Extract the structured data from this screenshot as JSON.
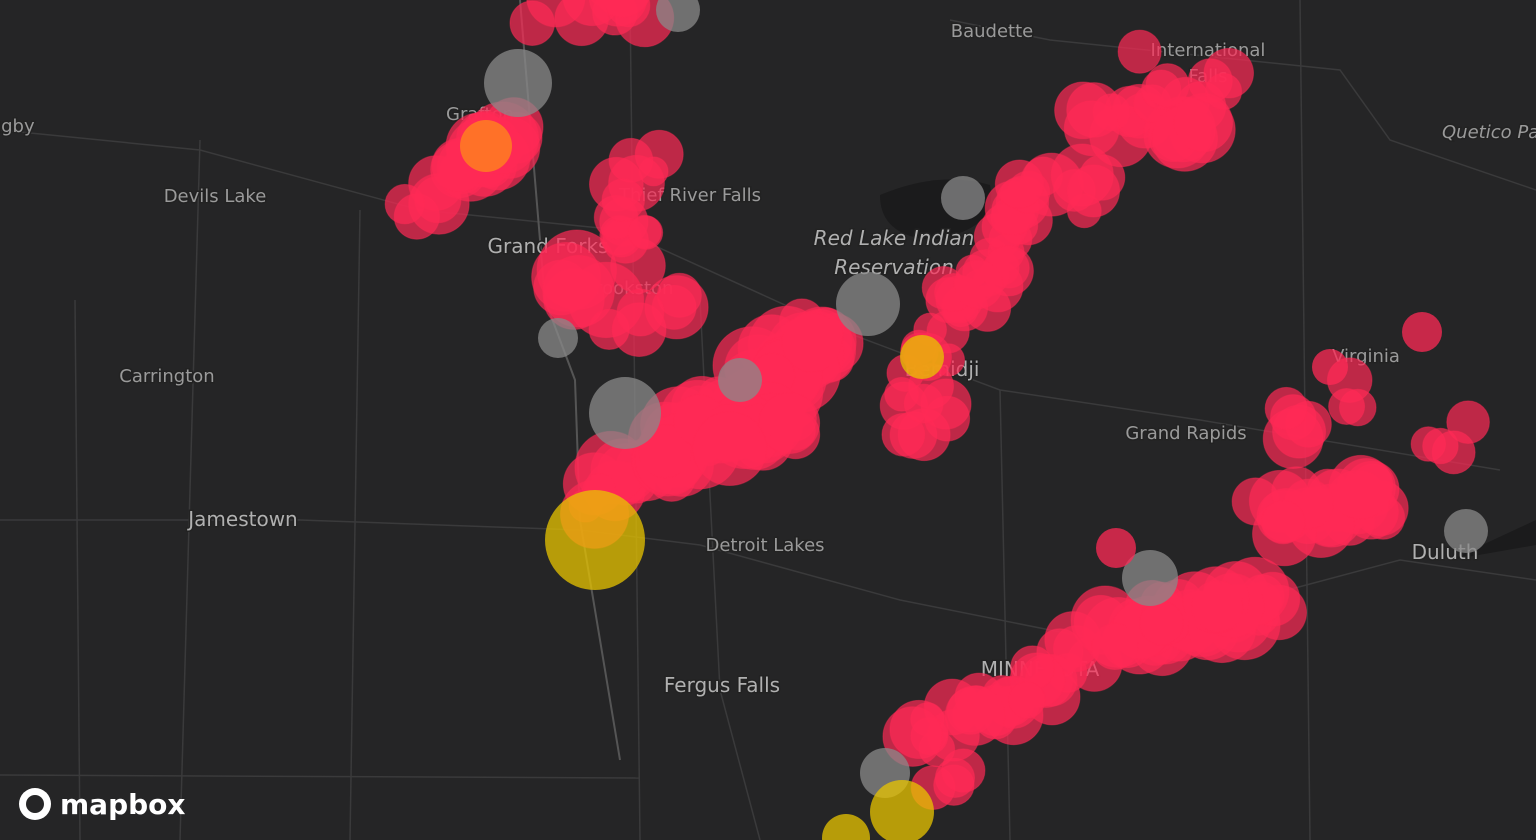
{
  "map": {
    "places": [
      {
        "label": "Baudette"
      },
      {
        "label": "International"
      },
      {
        "label": "Falls"
      },
      {
        "label": "Quetico Park"
      },
      {
        "label": "Rugby"
      },
      {
        "label": "Grafton"
      },
      {
        "label": "Devils Lake"
      },
      {
        "label": "Grand Forks"
      },
      {
        "label": "Thief River Falls"
      },
      {
        "label": "Red Lake Indian"
      },
      {
        "label": "Reservation"
      },
      {
        "label": "Crookston"
      },
      {
        "label": "Bemidji"
      },
      {
        "label": "Carrington"
      },
      {
        "label": "Virginia"
      },
      {
        "label": "Grand Rapids"
      },
      {
        "label": "Jamestown"
      },
      {
        "label": "Detroit Lakes"
      },
      {
        "label": "Duluth"
      },
      {
        "label": "Fergus Falls"
      },
      {
        "label": "MINNESOTA"
      }
    ],
    "attribution": "mapbox"
  }
}
